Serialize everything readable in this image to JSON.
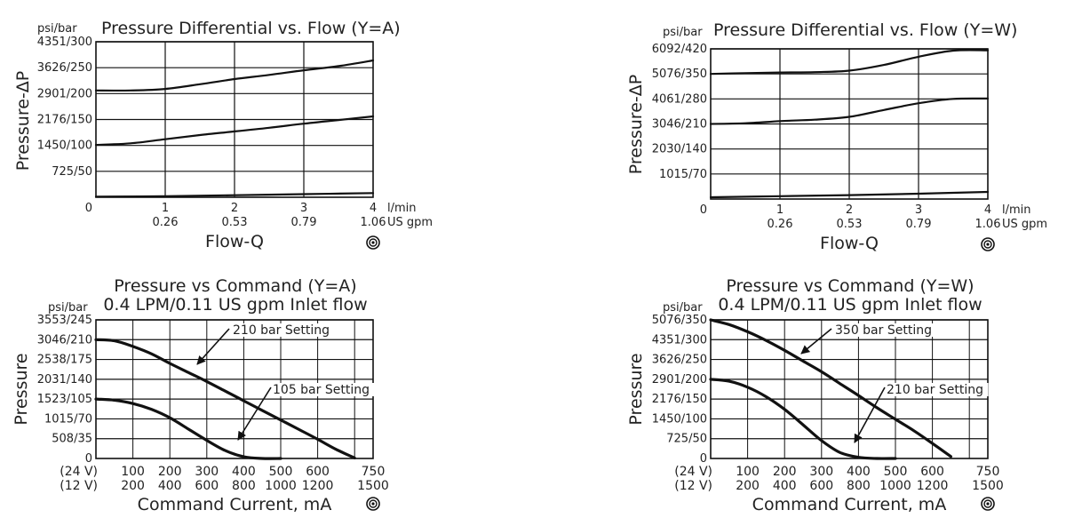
{
  "chart_data": [
    {
      "id": "tl",
      "type": "line",
      "title": "Pressure Differential vs. Flow (Y=A)",
      "unit_label": "psi/bar",
      "ylabel": "Pressure-ΔP",
      "xlabel": "Flow-Q",
      "x_unit_primary": "l/min",
      "x_unit_secondary": "US gpm",
      "y_ticks": [
        "725/50",
        "1450/100",
        "2176/150",
        "2901/200",
        "3626/250",
        "4351/300"
      ],
      "y_zero": "0",
      "x_ticks_primary": [
        "1",
        "2",
        "3",
        "4"
      ],
      "x_ticks_secondary": [
        "0.26",
        "0.53",
        "0.79",
        "1.06"
      ],
      "xlim": [
        0,
        4
      ],
      "ylim": [
        0,
        300
      ],
      "grid": true,
      "series": [
        {
          "x": [
            0,
            0.5,
            1,
            1.5,
            2,
            2.5,
            3,
            3.5,
            4
          ],
          "y": [
            206,
            206,
            209,
            218,
            228,
            236,
            245,
            253,
            264
          ]
        },
        {
          "x": [
            0,
            0.5,
            1,
            1.5,
            2,
            2.5,
            3,
            3.5,
            4
          ],
          "y": [
            101,
            104,
            112,
            120,
            127,
            134,
            142,
            149,
            156
          ]
        },
        {
          "x": [
            0,
            1,
            2,
            3,
            4
          ],
          "y": [
            1,
            2,
            4,
            6,
            8
          ]
        }
      ]
    },
    {
      "id": "tr",
      "type": "line",
      "title": "Pressure Differential vs. Flow (Y=W)",
      "unit_label": "psi/bar",
      "ylabel": "Pressure-ΔP",
      "xlabel": "Flow-Q",
      "x_unit_primary": "l/min",
      "x_unit_secondary": "US gpm",
      "y_ticks": [
        "1015/70",
        "2030/140",
        "3046/210",
        "4061/280",
        "5076/350",
        "6092/420"
      ],
      "y_zero": "0",
      "x_ticks_primary": [
        "1",
        "2",
        "3",
        "4"
      ],
      "x_ticks_secondary": [
        "0.26",
        "0.53",
        "0.79",
        "1.06"
      ],
      "xlim": [
        0,
        4
      ],
      "ylim": [
        0,
        420
      ],
      "grid": true,
      "series": [
        {
          "x": [
            0,
            0.5,
            1,
            1.5,
            2,
            2.5,
            3,
            3.5,
            4
          ],
          "y": [
            350,
            352,
            354,
            355,
            359,
            375,
            398,
            415,
            416
          ]
        },
        {
          "x": [
            0,
            0.5,
            1,
            1.5,
            2,
            2.5,
            3,
            3.5,
            4
          ],
          "y": [
            210,
            212,
            218,
            222,
            230,
            249,
            268,
            280,
            281
          ]
        },
        {
          "x": [
            0,
            1,
            2,
            3,
            4
          ],
          "y": [
            5,
            8,
            11,
            15,
            20
          ]
        }
      ]
    },
    {
      "id": "bl",
      "type": "line",
      "title": "Pressure vs Command (Y=A)",
      "subtitle": "0.4 LPM/0.11 US gpm Inlet flow",
      "unit_label": "psi/bar",
      "ylabel": "Pressure",
      "xlabel": "Command Current, mA",
      "y_ticks": [
        "508/35",
        "1015/70",
        "1523/105",
        "2031/140",
        "2538/175",
        "3046/210",
        "3553/245"
      ],
      "y_zero": "0",
      "x_ticks_24v": [
        "(24 V)",
        "100",
        "200",
        "300",
        "400",
        "500",
        "600",
        "750"
      ],
      "x_ticks_12v": [
        "(12 V)",
        "200",
        "400",
        "600",
        "800",
        "1000",
        "1200",
        "1500"
      ],
      "xlim": [
        0,
        750
      ],
      "ylim": [
        0,
        245
      ],
      "grid": true,
      "series": [
        {
          "name": "210 bar Setting",
          "x": [
            0,
            50,
            100,
            150,
            200,
            250,
            300,
            350,
            400,
            450,
            500,
            550,
            600,
            650,
            700
          ],
          "y": [
            210,
            208,
            198,
            185,
            168,
            152,
            136,
            119,
            102,
            85,
            68,
            51,
            34,
            16,
            1
          ]
        },
        {
          "name": "105 bar Setting",
          "x": [
            0,
            50,
            100,
            150,
            200,
            250,
            300,
            350,
            400,
            450,
            500
          ],
          "y": [
            105,
            103,
            97,
            87,
            72,
            52,
            32,
            14,
            3,
            0,
            0
          ]
        }
      ],
      "annotations": [
        "210 bar Setting",
        "105 bar Setting"
      ]
    },
    {
      "id": "br",
      "type": "line",
      "title": "Pressure vs Command (Y=W)",
      "subtitle": "0.4 LPM/0.11 US gpm Inlet flow",
      "unit_label": "psi/bar",
      "ylabel": "Pressure",
      "xlabel": "Command Current, mA",
      "y_ticks": [
        "725/50",
        "1450/100",
        "2176/150",
        "2901/200",
        "3626/250",
        "4351/300",
        "5076/350"
      ],
      "y_zero": "0",
      "x_ticks_24v": [
        "(24 V)",
        "100",
        "200",
        "300",
        "400",
        "500",
        "600",
        "750"
      ],
      "x_ticks_12v": [
        "(12 V)",
        "200",
        "400",
        "600",
        "800",
        "1000",
        "1200",
        "1500"
      ],
      "xlim": [
        0,
        750
      ],
      "ylim": [
        0,
        350
      ],
      "grid": true,
      "series": [
        {
          "name": "350 bar Setting",
          "x": [
            0,
            50,
            100,
            150,
            200,
            250,
            300,
            350,
            400,
            450,
            500,
            550,
            600,
            650
          ],
          "y": [
            350,
            338,
            320,
            298,
            273,
            246,
            219,
            189,
            159,
            128,
            99,
            70,
            38,
            5
          ]
        },
        {
          "name": "210 bar Setting",
          "x": [
            0,
            50,
            100,
            150,
            200,
            250,
            300,
            350,
            400,
            450,
            500
          ],
          "y": [
            200,
            195,
            180,
            156,
            124,
            85,
            45,
            15,
            3,
            0,
            0
          ]
        }
      ],
      "annotations": [
        "350 bar Setting",
        "210 bar Setting"
      ]
    }
  ]
}
